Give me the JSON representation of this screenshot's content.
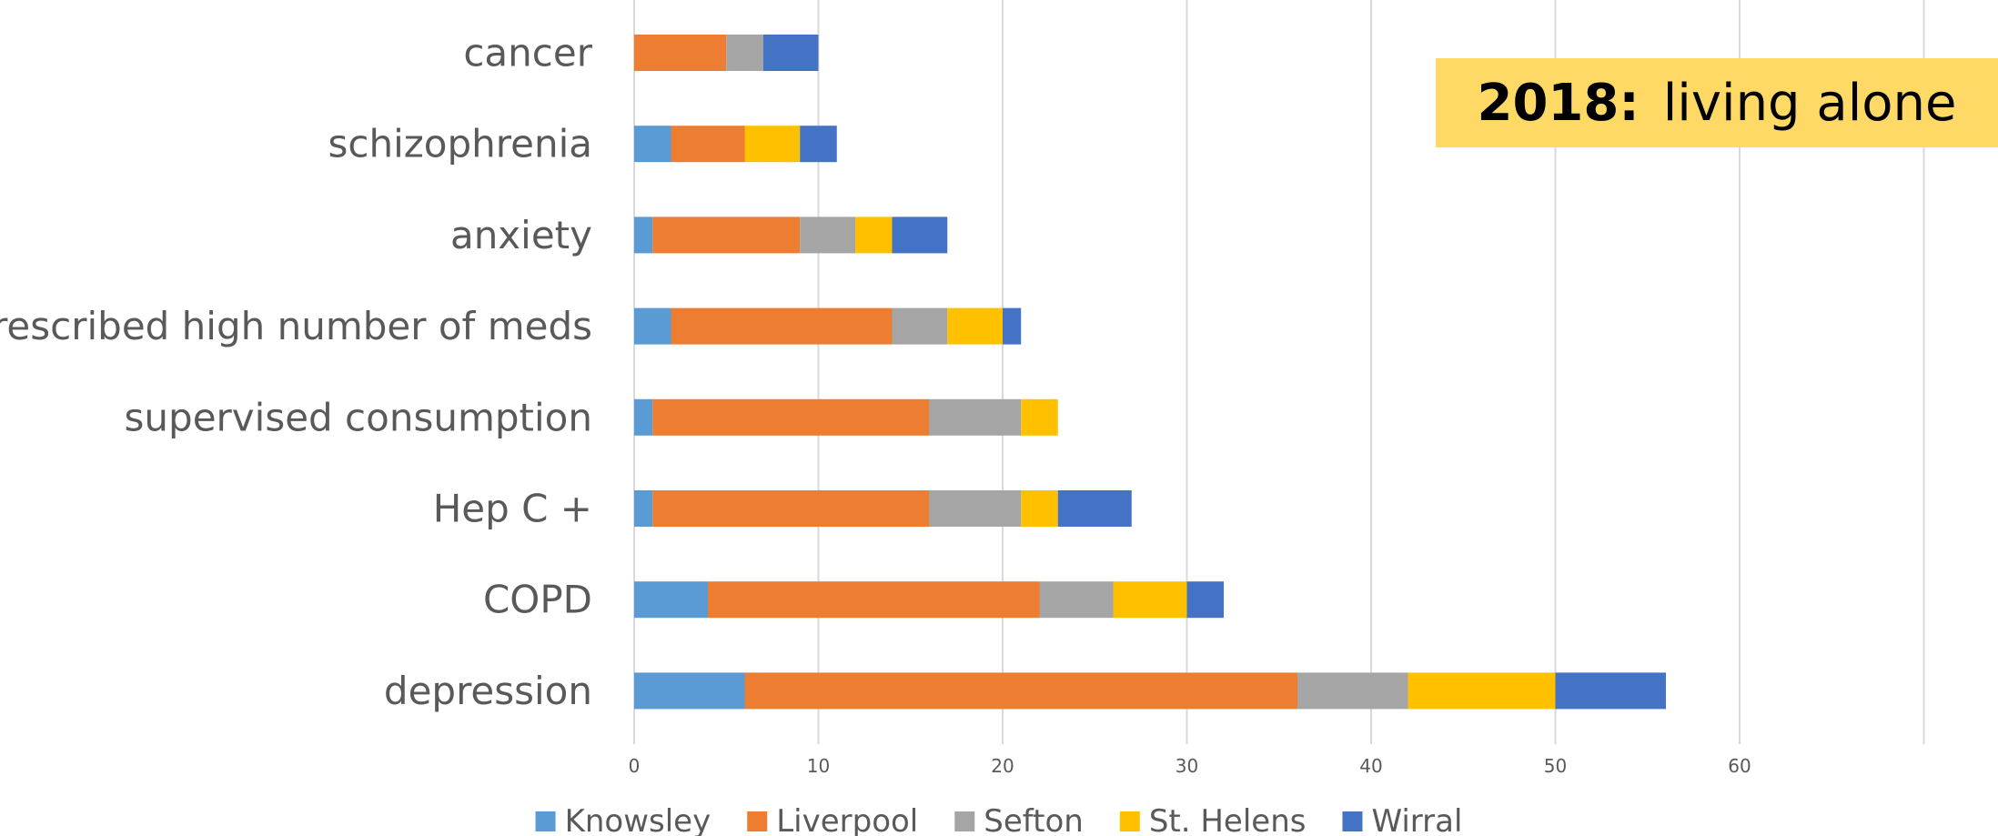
{
  "title": {
    "year": "2018:",
    "text": "living alone"
  },
  "colors": {
    "Knowsley": "#5b9bd5",
    "Liverpool": "#ed7d31",
    "Sefton": "#a5a5a5",
    "St. Helens": "#ffc000",
    "Wirral": "#4472c4",
    "title_bg": "#ffd966",
    "gridline": "#d9d9d9"
  },
  "chart_data": {
    "type": "bar",
    "orientation": "horizontal",
    "stacked": true,
    "title": "2018: living alone",
    "categories": [
      "cancer",
      "schizophrenia",
      "anxiety",
      "prescribed high number of meds",
      "supervised consumption",
      "Hep C +",
      "COPD",
      "depression"
    ],
    "series": [
      {
        "name": "Knowsley",
        "values": [
          0,
          2,
          1,
          2,
          1,
          1,
          4,
          6
        ]
      },
      {
        "name": "Liverpool",
        "values": [
          5,
          4,
          8,
          12,
          15,
          15,
          18,
          30
        ]
      },
      {
        "name": "Sefton",
        "values": [
          2,
          0,
          3,
          3,
          5,
          5,
          4,
          6
        ]
      },
      {
        "name": "St. Helens",
        "values": [
          0,
          3,
          2,
          3,
          2,
          2,
          4,
          8
        ]
      },
      {
        "name": "Wirral",
        "values": [
          3,
          2,
          3,
          1,
          0,
          4,
          2,
          6
        ]
      }
    ],
    "x_ticks": [
      0,
      10,
      20,
      30,
      40,
      50,
      60
    ],
    "xlim": [
      0,
      60
    ],
    "grid": "vertical",
    "legend_position": "bottom",
    "xlabel": "",
    "ylabel": ""
  }
}
